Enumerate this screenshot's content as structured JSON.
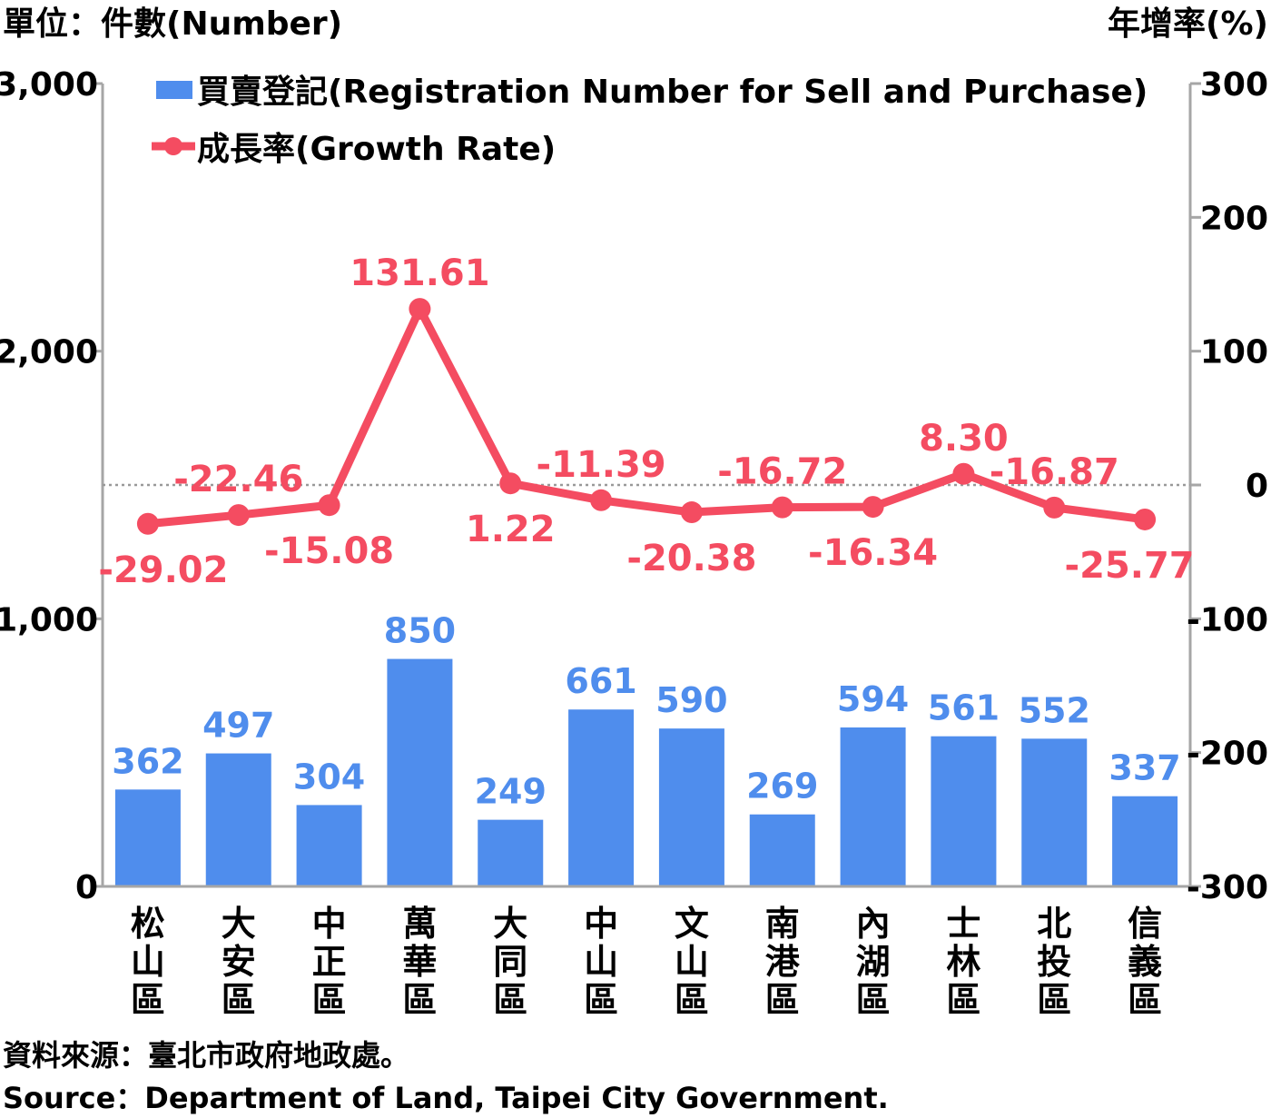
{
  "chart_data": {
    "type": "bar+line",
    "categories": [
      "松山區",
      "大安區",
      "中正區",
      "萬華區",
      "大同區",
      "中山區",
      "文山區",
      "南港區",
      "內湖區",
      "士林區",
      "北投區",
      "信義區"
    ],
    "series": [
      {
        "name": "買賣登記(Registration Number for Sell and Purchase)",
        "type": "bar",
        "axis": "left",
        "values": [
          362,
          497,
          304,
          850,
          249,
          661,
          590,
          269,
          594,
          561,
          552,
          337
        ]
      },
      {
        "name": "成長率(Growth Rate)",
        "type": "line",
        "axis": "right",
        "values": [
          -29.02,
          -22.46,
          -15.08,
          131.61,
          1.22,
          -11.39,
          -20.38,
          -16.72,
          -16.34,
          8.3,
          -16.87,
          -25.77
        ],
        "labels": [
          "-29.02",
          "-22.46",
          "-15.08",
          "131.61",
          "1.22",
          "-11.39",
          "-20.38",
          "-16.72",
          "-16.34",
          "8.30",
          "-16.87",
          "-25.77"
        ],
        "label_side": [
          "below",
          "above",
          "below",
          "above",
          "below",
          "above",
          "below",
          "above",
          "below",
          "above",
          "above",
          "below"
        ]
      }
    ],
    "left_axis": {
      "label": "單位：件數(Number)",
      "range": [
        0,
        3000
      ],
      "ticks": [
        "0",
        "1,000",
        "2,000",
        "3,000"
      ],
      "tick_values": [
        0,
        1000,
        2000,
        3000
      ]
    },
    "right_axis": {
      "label": "年增率(%)",
      "range": [
        -300,
        300
      ],
      "ticks": [
        "-300",
        "-200",
        "-100",
        "0",
        "100",
        "200",
        "300"
      ],
      "tick_values": [
        -300,
        -200,
        -100,
        0,
        100,
        200,
        300
      ]
    },
    "zero_line": "dotted",
    "legend_position": "top",
    "colors": {
      "bar": "#4f8ded",
      "line": "#f44c61",
      "axis": "#a6a6a6",
      "text": "#000000"
    }
  },
  "source": {
    "zh": "資料來源：臺北市政府地政處。",
    "en": "Source：Department of Land, Taipei City Government."
  }
}
